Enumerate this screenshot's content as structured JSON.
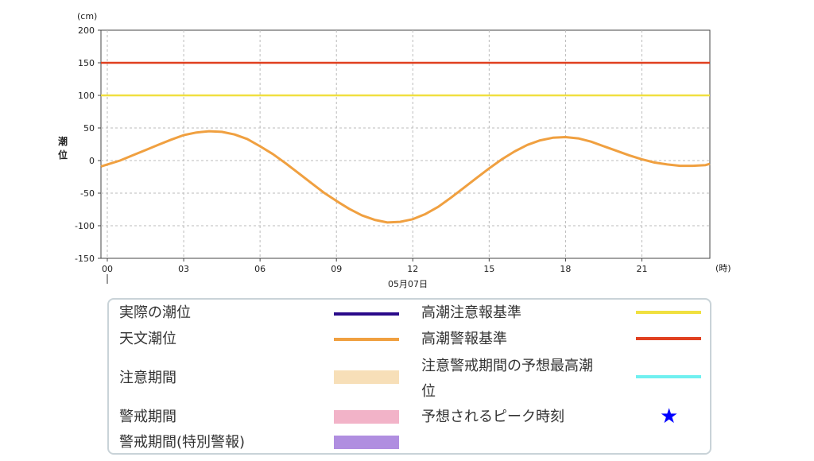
{
  "chart_data": {
    "type": "line",
    "ylabel": "潮位",
    "yunit": "(cm)",
    "xunit": "(時)",
    "ylim": [
      -150,
      200
    ],
    "yticks": [
      "200",
      "150",
      "100",
      "50",
      "0",
      "-50",
      "-100",
      "-150"
    ],
    "xlim": [
      0,
      24
    ],
    "xticks": [
      "00",
      "03",
      "06",
      "09",
      "12",
      "15",
      "18",
      "21"
    ],
    "date_label": "05月07日",
    "grid": true,
    "series": [
      {
        "name": "天文潮位",
        "color": "#f0a040",
        "x": [
          -0.3,
          0,
          0.5,
          1,
          1.5,
          2,
          2.5,
          3,
          3.5,
          4,
          4.5,
          5,
          5.5,
          6,
          6.5,
          7,
          7.5,
          8,
          8.5,
          9,
          9.5,
          10,
          10.5,
          11,
          11.5,
          12,
          12.5,
          13,
          13.5,
          14,
          14.5,
          15,
          15.5,
          16,
          16.5,
          17,
          17.5,
          18,
          18.5,
          19,
          19.5,
          20,
          20.5,
          21,
          21.5,
          22,
          22.5,
          23,
          23.5,
          24
        ],
        "y": [
          -9,
          -6,
          0,
          8,
          16,
          24,
          32,
          39,
          43,
          45,
          44,
          40,
          33,
          22,
          10,
          -4,
          -19,
          -34,
          -49,
          -62,
          -74,
          -84,
          -91,
          -95,
          -94,
          -90,
          -82,
          -71,
          -57,
          -42,
          -27,
          -12,
          2,
          14,
          24,
          31,
          35,
          36,
          34,
          29,
          22,
          15,
          8,
          2,
          -3,
          -6,
          -8,
          -8,
          -7,
          -5
        ]
      }
    ],
    "reference_lines": [
      {
        "name": "高潮警報基準",
        "value": 150,
        "color": "#e04020"
      },
      {
        "name": "高潮注意報基準",
        "value": 100,
        "color": "#f0e040"
      }
    ]
  },
  "legend": {
    "items": [
      {
        "label": "実際の潮位",
        "color": "#2a0a8a",
        "kind": "line"
      },
      {
        "label": "天文潮位",
        "color": "#f0a040",
        "kind": "line"
      },
      {
        "label": "注意期間",
        "color": "#f7dfb8",
        "kind": "rect"
      },
      {
        "label": "警戒期間",
        "color": "#f2b3c8",
        "kind": "rect"
      },
      {
        "label": "警戒期間(特別警報)",
        "color": "#b08ee0",
        "kind": "rect"
      },
      {
        "label": "高潮注意報基準",
        "color": "#f0e040",
        "kind": "line"
      },
      {
        "label": "高潮警報基準",
        "color": "#e04020",
        "kind": "line"
      },
      {
        "label_line1": "注意警戒期間の予想最高潮",
        "label_line2": "位",
        "color": "#70f0f0",
        "kind": "line"
      },
      {
        "label": "予想されるピーク時刻",
        "color": "#0000ff",
        "kind": "star",
        "icon": "star-icon",
        "symbol": "★"
      }
    ]
  }
}
